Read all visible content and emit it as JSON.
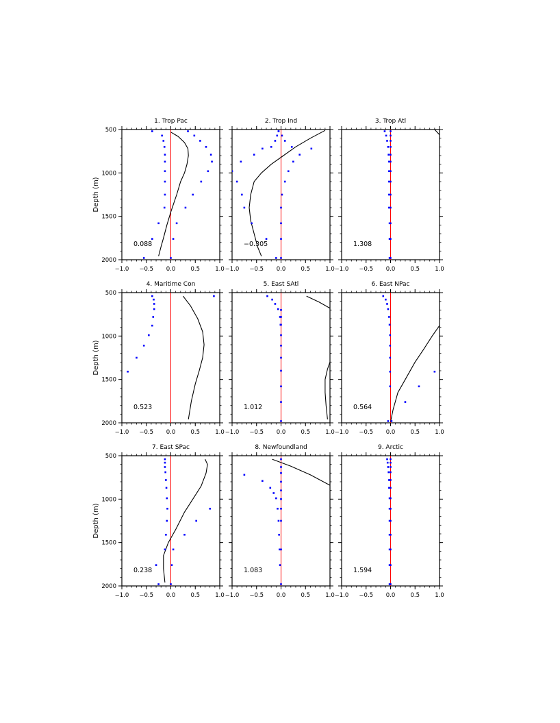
{
  "ylabel": "Depth (m)",
  "colors": {
    "solid": "#000000",
    "dots": "#0000ff",
    "zero_line": "#ff0000"
  },
  "chart_data": [
    {
      "type": "line",
      "title": "1. Trop Pac",
      "value_label": "0.088",
      "xlim": [
        -1,
        1
      ],
      "ylim": [
        2000,
        500
      ],
      "xticks": [
        "-1.0",
        "-0.5",
        "0.0",
        "0.5",
        "1.0"
      ],
      "yticks": [
        "500",
        "1000",
        "1500",
        "2000"
      ],
      "line": {
        "x": [
          0.0,
          0.15,
          0.28,
          0.35,
          0.36,
          0.33,
          0.28,
          0.2,
          0.12,
          0.0,
          -0.08,
          -0.15,
          -0.2,
          -0.25
        ],
        "y": [
          530,
          580,
          650,
          720,
          800,
          900,
          1000,
          1100,
          1250,
          1450,
          1600,
          1750,
          1850,
          1960
        ]
      },
      "dots_pos": {
        "x": [
          0.35,
          0.48,
          0.6,
          0.72,
          0.82,
          0.84,
          0.76,
          0.62,
          0.45,
          0.3,
          0.12,
          0.05,
          0.0
        ],
        "y": [
          520,
          570,
          630,
          700,
          790,
          870,
          980,
          1100,
          1250,
          1400,
          1580,
          1760,
          1980
        ]
      },
      "dots_neg": {
        "x": [
          -0.38,
          -0.18,
          -0.15,
          -0.13,
          -0.12,
          -0.12,
          -0.12,
          -0.12,
          -0.12,
          -0.13,
          -0.25,
          -0.38,
          -0.55
        ],
        "y": [
          520,
          570,
          630,
          700,
          790,
          870,
          980,
          1100,
          1250,
          1400,
          1580,
          1760,
          1980
        ]
      }
    },
    {
      "type": "line",
      "title": "2. Trop Ind",
      "value_label": "-0.305",
      "xlim": [
        -1,
        1
      ],
      "ylim": [
        2000,
        500
      ],
      "xticks": [
        "-1.0",
        "-0.5",
        "0.0",
        "0.5",
        "1.0"
      ],
      "yticks": [
        "500",
        "1000",
        "1500",
        "2000"
      ],
      "line": {
        "x": [
          0.9,
          0.6,
          0.3,
          0.05,
          -0.2,
          -0.4,
          -0.55,
          -0.62,
          -0.65,
          -0.62,
          -0.55,
          -0.48,
          -0.4
        ],
        "y": [
          510,
          600,
          700,
          800,
          900,
          1000,
          1100,
          1250,
          1400,
          1550,
          1700,
          1850,
          1960
        ]
      },
      "dots_pos": {
        "x": [
          -0.05,
          0.02,
          0.08,
          0.22,
          0.62,
          0.38,
          0.25,
          0.15,
          0.08,
          0.02,
          0.0,
          0.0,
          0.0,
          0.0
        ],
        "y": [
          520,
          570,
          630,
          700,
          720,
          790,
          870,
          980,
          1100,
          1250,
          1580,
          1760,
          1980,
          1400
        ]
      },
      "dots_neg": {
        "x": [
          -0.05,
          -0.08,
          -0.12,
          -0.2,
          -0.38,
          -0.55,
          -0.82,
          -1.0,
          -0.9,
          -0.8,
          -0.75,
          -0.6,
          -0.3,
          -0.1
        ],
        "y": [
          520,
          570,
          630,
          700,
          720,
          790,
          870,
          980,
          1100,
          1250,
          1400,
          1580,
          1760,
          1980
        ]
      }
    },
    {
      "type": "line",
      "title": "3. Trop Atl",
      "value_label": "1.308",
      "xlim": [
        -1,
        1
      ],
      "ylim": [
        2000,
        500
      ],
      "xticks": [
        "-1.0",
        "-0.5",
        "0.0",
        "0.5",
        "1.0"
      ],
      "yticks": [
        "500",
        "1000",
        "1500",
        "2000"
      ],
      "line": {
        "x": [
          0.9,
          1.0
        ],
        "y": [
          500,
          560
        ]
      },
      "dots_pos": {
        "x": [
          0.0,
          0.0,
          0.0,
          0.0,
          0.0,
          0.0,
          0.0,
          0.0,
          0.0,
          0.0,
          0.0,
          0.0,
          0.0
        ],
        "y": [
          520,
          570,
          630,
          700,
          790,
          870,
          980,
          1100,
          1250,
          1400,
          1580,
          1760,
          1980
        ]
      },
      "dots_neg": {
        "x": [
          -0.12,
          -0.09,
          -0.07,
          -0.05,
          -0.04,
          -0.03,
          -0.03,
          -0.03,
          -0.03,
          -0.03,
          -0.02,
          -0.02,
          -0.02
        ],
        "y": [
          520,
          570,
          630,
          700,
          790,
          870,
          980,
          1100,
          1250,
          1400,
          1580,
          1760,
          1980
        ]
      }
    },
    {
      "type": "line",
      "title": "4. Maritime Con",
      "value_label": "0.523",
      "xlim": [
        -1,
        1
      ],
      "ylim": [
        2000,
        500
      ],
      "xticks": [
        "-1.0",
        "-0.5",
        "0.0",
        "0.5",
        "1.0"
      ],
      "yticks": [
        "500",
        "1000",
        "1500",
        "2000"
      ],
      "line": {
        "x": [
          0.25,
          0.4,
          0.55,
          0.65,
          0.68,
          0.65,
          0.58,
          0.5,
          0.42,
          0.36
        ],
        "y": [
          540,
          650,
          800,
          950,
          1100,
          1250,
          1400,
          1550,
          1750,
          1960
        ]
      },
      "dots_pos": {
        "x": [
          0.88
        ],
        "y": [
          540
        ]
      },
      "dots_neg": {
        "x": [
          -0.38,
          -0.35,
          -0.34,
          -0.34,
          -0.36,
          -0.38,
          -0.45,
          -0.55,
          -0.7,
          -0.88
        ],
        "y": [
          540,
          580,
          630,
          690,
          780,
          880,
          990,
          1110,
          1250,
          1410
        ]
      }
    },
    {
      "type": "line",
      "title": "5. East SAtl",
      "value_label": "1.012",
      "xlim": [
        -1,
        1
      ],
      "ylim": [
        2000,
        500
      ],
      "xticks": [
        "-1.0",
        "-0.5",
        "0.0",
        "0.5",
        "1.0"
      ],
      "yticks": [
        "500",
        "1000",
        "1500",
        "2000"
      ],
      "line": {
        "x": [
          0.52,
          0.78,
          1.0
        ],
        "y": [
          540,
          610,
          680
        ]
      },
      "line2": {
        "x": [
          1.0,
          0.95,
          0.9,
          0.9,
          0.92,
          0.95
        ],
        "y": [
          1300,
          1380,
          1500,
          1650,
          1800,
          1960
        ]
      },
      "dots_pos": {
        "x": [
          0.0,
          0.0,
          0.0,
          0.0,
          0.0,
          0.0,
          0.0,
          0.0,
          0.0,
          0.0
        ],
        "y": [
          870,
          990,
          1110,
          1250,
          1400,
          1580,
          1760,
          1980,
          780,
          700
        ]
      },
      "dots_neg": {
        "x": [
          -0.28,
          -0.18,
          -0.12,
          -0.06,
          -0.02,
          -0.01
        ],
        "y": [
          540,
          580,
          630,
          690,
          780,
          870
        ]
      }
    },
    {
      "type": "line",
      "title": "6. East NPac",
      "value_label": "0.564",
      "xlim": [
        -1,
        1
      ],
      "ylim": [
        2000,
        500
      ],
      "xticks": [
        "-1.0",
        "-0.5",
        "0.0",
        "0.5",
        "1.0"
      ],
      "yticks": [
        "500",
        "1000",
        "1500",
        "2000"
      ],
      "line": {
        "x": [
          1.0,
          0.85,
          0.68,
          0.5,
          0.3,
          0.15,
          0.05,
          0.0
        ],
        "y": [
          880,
          1000,
          1150,
          1300,
          1500,
          1650,
          1850,
          1990
        ]
      },
      "dots_pos": {
        "x": [
          0.9,
          0.58,
          0.3,
          0.02
        ],
        "y": [
          1410,
          1580,
          1760,
          1980
        ]
      },
      "dots_neg": {
        "x": [
          -0.15,
          -0.1,
          -0.07,
          -0.05,
          -0.03,
          -0.02,
          -0.01,
          -0.01,
          -0.01,
          -0.01,
          -0.01,
          -0.05
        ],
        "y": [
          540,
          580,
          630,
          690,
          780,
          870,
          990,
          1110,
          1250,
          1410,
          1580,
          1980
        ]
      }
    },
    {
      "type": "line",
      "title": "7. East SPac",
      "value_label": "0.238",
      "xlim": [
        -1,
        1
      ],
      "ylim": [
        2000,
        500
      ],
      "xticks": [
        "-1.0",
        "-0.5",
        "0.0",
        "0.5",
        "1.0"
      ],
      "yticks": [
        "500",
        "1000",
        "1500",
        "2000"
      ],
      "line": {
        "x": [
          0.7,
          0.75,
          0.72,
          0.62,
          0.45,
          0.28,
          0.1,
          -0.05,
          -0.15,
          -0.15,
          -0.12
        ],
        "y": [
          540,
          600,
          700,
          850,
          1000,
          1150,
          1350,
          1500,
          1650,
          1800,
          1960
        ]
      },
      "dots_pos": {
        "x": [
          0.8,
          0.52,
          0.28,
          0.05,
          0.02,
          0.0
        ],
        "y": [
          1110,
          1250,
          1410,
          1580,
          1760,
          1980
        ]
      },
      "dots_neg": {
        "x": [
          -0.12,
          -0.12,
          -0.12,
          -0.11,
          -0.1,
          -0.09,
          -0.08,
          -0.07,
          -0.08,
          -0.1,
          -0.12,
          -0.3,
          -0.25
        ],
        "y": [
          540,
          580,
          630,
          690,
          780,
          870,
          990,
          1110,
          1250,
          1410,
          1580,
          1760,
          1980
        ]
      }
    },
    {
      "type": "line",
      "title": "8. Newfoundland",
      "value_label": "1.083",
      "xlim": [
        -1,
        1
      ],
      "ylim": [
        2000,
        500
      ],
      "xticks": [
        "-1.0",
        "-0.5",
        "0.0",
        "0.5",
        "1.0"
      ],
      "yticks": [
        "500",
        "1000",
        "1500",
        "2000"
      ],
      "line": {
        "x": [
          -0.18,
          0.2,
          0.6,
          1.0
        ],
        "y": [
          540,
          620,
          720,
          840
        ]
      },
      "dots_pos": {
        "x": [
          0.0,
          0.0,
          0.0,
          0.0,
          0.0,
          0.0,
          0.0,
          0.0,
          0.0,
          0.0
        ],
        "y": [
          540,
          630,
          700,
          800,
          900,
          1000,
          1110,
          1250,
          1580,
          1980
        ]
      },
      "dots_neg": {
        "x": [
          -0.75,
          -0.38,
          -0.22,
          -0.15,
          -0.1,
          -0.07,
          -0.05,
          -0.04,
          -0.03,
          -0.02
        ],
        "y": [
          720,
          790,
          870,
          930,
          990,
          1110,
          1250,
          1410,
          1580,
          1760
        ]
      }
    },
    {
      "type": "line",
      "title": "9. Arctic",
      "value_label": "1.594",
      "xlim": [
        -1,
        1
      ],
      "ylim": [
        2000,
        500
      ],
      "xticks": [
        "-1.0",
        "-0.5",
        "0.0",
        "0.5",
        "1.0"
      ],
      "yticks": [
        "500",
        "1000",
        "1500",
        "2000"
      ],
      "line": {
        "x": [],
        "y": []
      },
      "dots_pos": {
        "x": [
          0.0,
          0.0,
          0.0,
          0.0,
          0.0,
          0.0,
          0.0,
          0.0,
          0.0,
          0.0,
          0.0,
          0.0,
          0.0
        ],
        "y": [
          540,
          580,
          630,
          690,
          780,
          870,
          990,
          1110,
          1250,
          1410,
          1580,
          1760,
          1980
        ]
      },
      "dots_neg": {
        "x": [
          -0.07,
          -0.06,
          -0.05,
          -0.04,
          -0.03,
          -0.03,
          -0.02,
          -0.02,
          -0.02,
          -0.02,
          -0.02,
          -0.02,
          -0.02
        ],
        "y": [
          540,
          580,
          630,
          690,
          780,
          870,
          990,
          1110,
          1250,
          1410,
          1580,
          1760,
          1980
        ]
      }
    }
  ]
}
